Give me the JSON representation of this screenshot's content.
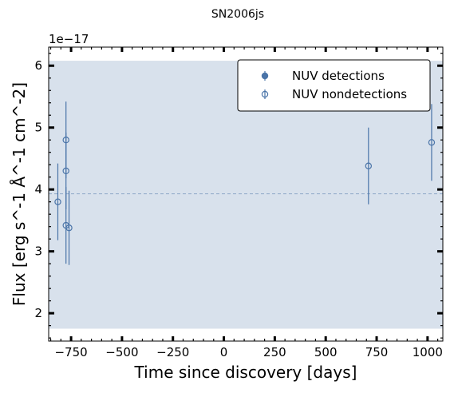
{
  "chart_data": {
    "type": "scatter",
    "title": "SN2006js",
    "xlabel": "Time since discovery [days]",
    "ylabel": "Flux [erg s^-1 Å^-1 cm^-2]",
    "y_offset_label": "1e−17",
    "xlim": [
      -860,
      1075
    ],
    "ylim": [
      1.55,
      6.3
    ],
    "xticks": [
      -750,
      -500,
      -250,
      0,
      250,
      500,
      750,
      1000
    ],
    "xtick_labels": [
      "−750",
      "−500",
      "−250",
      "0",
      "250",
      "500",
      "750",
      "1000"
    ],
    "yticks": [
      2,
      3,
      4,
      5,
      6
    ],
    "ytick_labels": [
      "2",
      "3",
      "4",
      "5",
      "6"
    ],
    "grid": false,
    "legend_position": "top-right",
    "legend": [
      {
        "label": "NUV detections",
        "marker": "filled-circle"
      },
      {
        "label": "NUV nondetections",
        "marker": "open-circle"
      }
    ],
    "colors": {
      "marker": "#4a74a8",
      "band_fill": "#d8e1ec",
      "baseline": "#8fa9c8"
    },
    "band": {
      "x": [
        -860,
        1075
      ],
      "y": [
        1.75,
        6.08
      ]
    },
    "baseline_y": 3.93,
    "series": [
      {
        "name": "NUV detections",
        "marker": "filled-circle",
        "points": []
      },
      {
        "name": "NUV nondetections",
        "marker": "open-circle",
        "points": [
          {
            "x": -815,
            "y": 3.8,
            "err": 0.62
          },
          {
            "x": -775,
            "y": 4.8,
            "err": 0.62
          },
          {
            "x": -775,
            "y": 4.3,
            "err": 0.62
          },
          {
            "x": -775,
            "y": 3.42,
            "err": 0.62
          },
          {
            "x": -760,
            "y": 3.38,
            "err": 0.6
          },
          {
            "x": 710,
            "y": 4.38,
            "err": 0.62
          },
          {
            "x": 1020,
            "y": 4.76,
            "err": 0.62
          }
        ]
      }
    ]
  }
}
